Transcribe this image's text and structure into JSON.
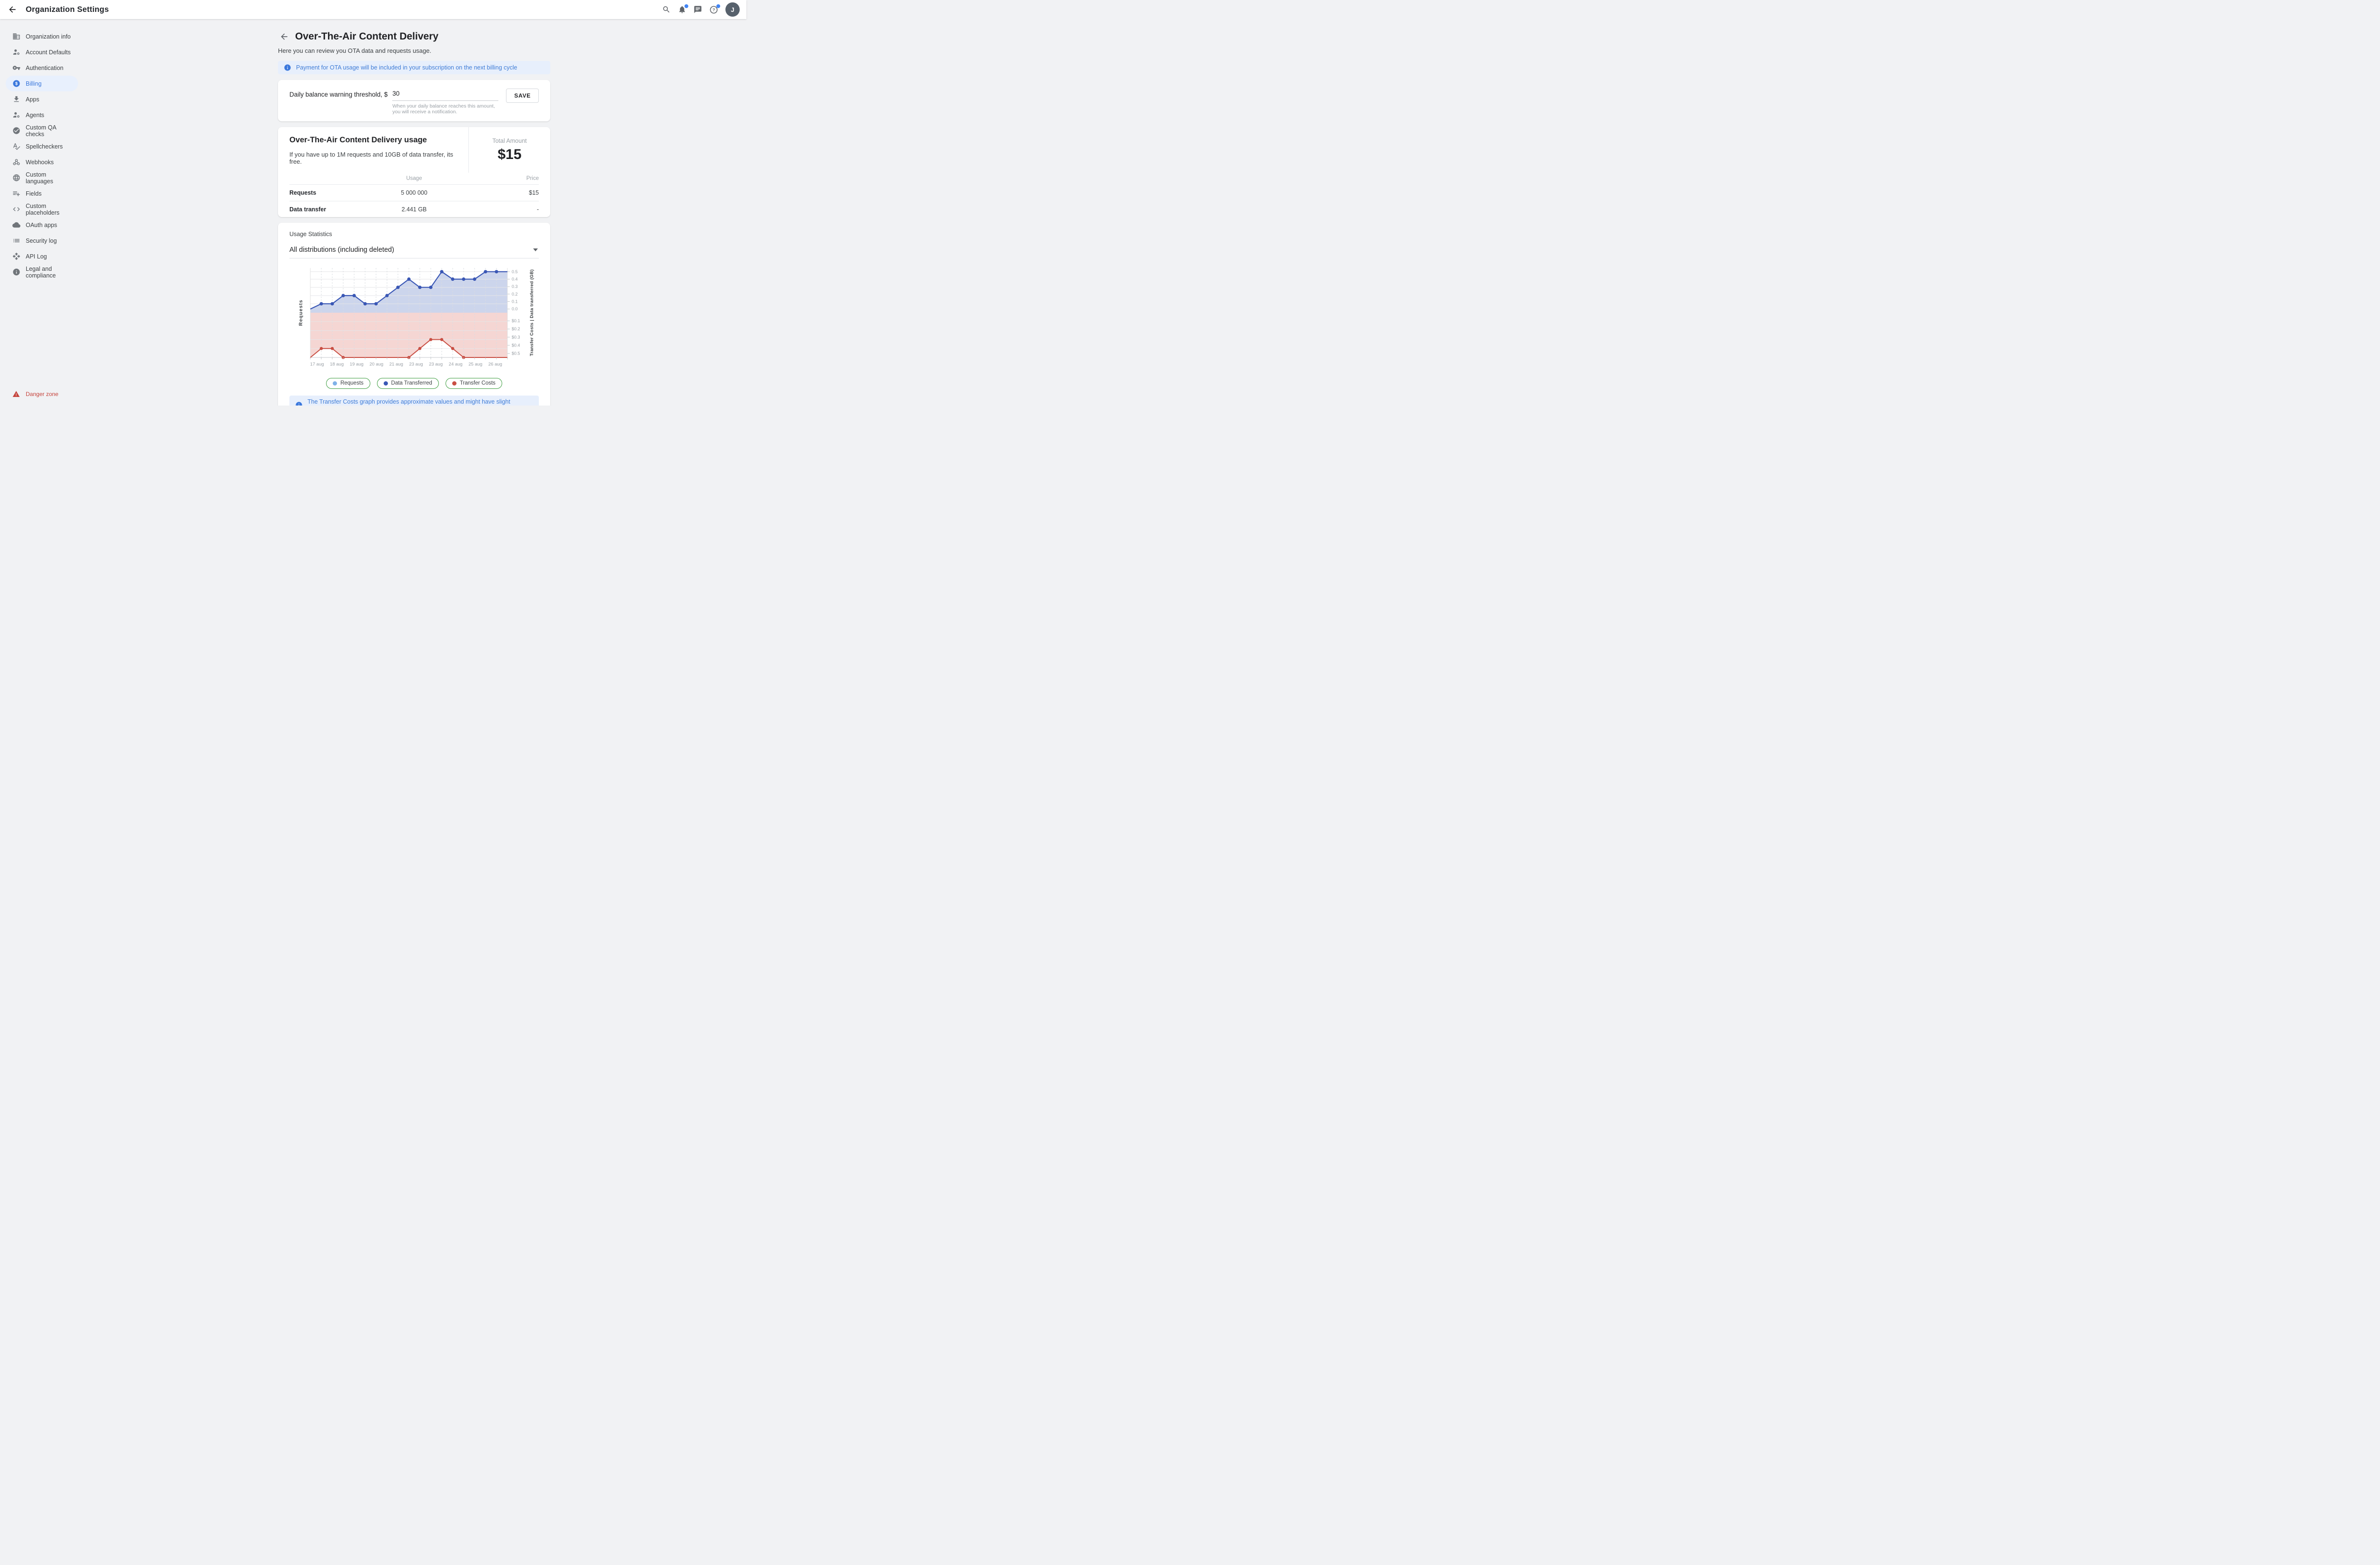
{
  "topbar": {
    "title": "Organization Settings",
    "avatar_initial": "J"
  },
  "sidebar": {
    "items": [
      {
        "label": "Organization info",
        "icon": "domain"
      },
      {
        "label": "Account Defaults",
        "icon": "manage-accounts"
      },
      {
        "label": "Authentication",
        "icon": "key"
      },
      {
        "label": "Billing",
        "icon": "paid",
        "active": true
      },
      {
        "label": "Apps",
        "icon": "download"
      },
      {
        "label": "Agents",
        "icon": "manage-accounts"
      },
      {
        "label": "Custom QA checks",
        "icon": "check-circle"
      },
      {
        "label": "Spellcheckers",
        "icon": "spellcheck"
      },
      {
        "label": "Webhooks",
        "icon": "webhook"
      },
      {
        "label": "Custom languages",
        "icon": "globe"
      },
      {
        "label": "Fields",
        "icon": "playlist-add"
      },
      {
        "label": "Custom placeholders",
        "icon": "code"
      },
      {
        "label": "OAuth apps",
        "icon": "cloud"
      },
      {
        "label": "Security log",
        "icon": "list"
      },
      {
        "label": "API Log",
        "icon": "open-with"
      },
      {
        "label": "Legal and compliance",
        "icon": "info"
      }
    ],
    "danger": {
      "label": "Danger zone",
      "icon": "warning"
    }
  },
  "page": {
    "title": "Over-The-Air Content Delivery",
    "subtitle": "Here you can review you OTA data and requests usage.",
    "banner": "Payment for OTA usage will be included in your subscription on the next billing cycle"
  },
  "threshold": {
    "label": "Daily balance warning threshold, $",
    "value": "30",
    "helper": "When your daily balance reaches this amount, you will receive a notification.",
    "save_label": "SAVE"
  },
  "usage": {
    "heading": "Over-The-Air Content Delivery usage",
    "description": "If you have up to 1M requests and 10GB of data transfer, its free.",
    "total_label": "Total Amount",
    "total_value": "$15",
    "columns": {
      "usage": "Usage",
      "price": "Price"
    },
    "rows": [
      {
        "name": "Requests",
        "usage": "5 000 000",
        "price": "$15"
      },
      {
        "name": "Data transfer",
        "usage": "2.441 GB",
        "price": "-"
      }
    ]
  },
  "statistics": {
    "heading": "Usage Statistics",
    "filter_value": "All distributions (including deleted)",
    "banner": "The Transfer Costs graph provides approximate values and might have slight deviations from the actual costs."
  },
  "chart_data": {
    "type": "line",
    "title": "Usage Statistics",
    "x_labels": [
      "17 aug",
      "18 aug",
      "19 aug",
      "20 aug",
      "21 aug",
      "23 aug",
      "23 aug",
      "24 aug",
      "25 aug",
      "26 aug"
    ],
    "x_points": "19 half-day points from 17 aug to 26 aug",
    "left_axis_label": "Requests",
    "right_axis_label": "Transfer Costs | Data transferred (GB)",
    "right_axis_ticks_top": [
      "0.5",
      "0.4",
      "0.3",
      "0.2",
      "0.1",
      "0.0"
    ],
    "right_axis_ticks_bottom": [
      "$0.1",
      "$0.2",
      "$0.3",
      "$0.4",
      "$0.5"
    ],
    "top_half_axis_range_gb": [
      0,
      0.55
    ],
    "bottom_half_axis_range_usd": [
      0,
      0.55
    ],
    "bottom_axis_inverted": "costs increase downward from the middle baseline",
    "grid": true,
    "legend_position": "bottom",
    "legend_border_color": "#3e9e41",
    "legend": [
      {
        "label": "Requests",
        "color": "#7fb1e8"
      },
      {
        "label": "Data Transferred",
        "color": "#3a57b5"
      },
      {
        "label": "Transfer Costs",
        "color": "#c94f44"
      }
    ],
    "series": [
      {
        "name": "Requests",
        "color": "#7fb1e8",
        "note": "line coincides with Data Transferred; left Requests axis shows no numeric ticks"
      },
      {
        "name": "Data Transferred",
        "color": "#3a57b5",
        "area_color": "#ccd5ec",
        "values_gb": [
          0,
          0.07,
          0.07,
          0.18,
          0.18,
          0.07,
          0.07,
          0.18,
          0.29,
          0.4,
          0.29,
          0.29,
          0.5,
          0.4,
          0.4,
          0.4,
          0.5,
          0.5,
          0.5
        ],
        "marker_indices": [
          1,
          2,
          3,
          4,
          5,
          6,
          7,
          8,
          9,
          10,
          11,
          12,
          13,
          14,
          15,
          16,
          17
        ]
      },
      {
        "name": "Transfer Costs",
        "color": "#c94f44",
        "area_color": "#f5d6d3",
        "values_usd": [
          0.55,
          0.44,
          0.44,
          0.55,
          0.55,
          0.55,
          0.55,
          0.55,
          0.55,
          0.55,
          0.44,
          0.33,
          0.33,
          0.44,
          0.55,
          0.55,
          0.55,
          0.55,
          0.55
        ],
        "marker_indices": [
          1,
          2,
          3,
          9,
          10,
          11,
          12,
          13,
          14
        ]
      }
    ]
  },
  "colors": {
    "accent_blue": "#3b78dc",
    "active_item_bg": "#e8f0fd",
    "banner_bg": "#e7effc",
    "danger_red": "#c5443c",
    "legend_border_green": "#3e9e41"
  }
}
